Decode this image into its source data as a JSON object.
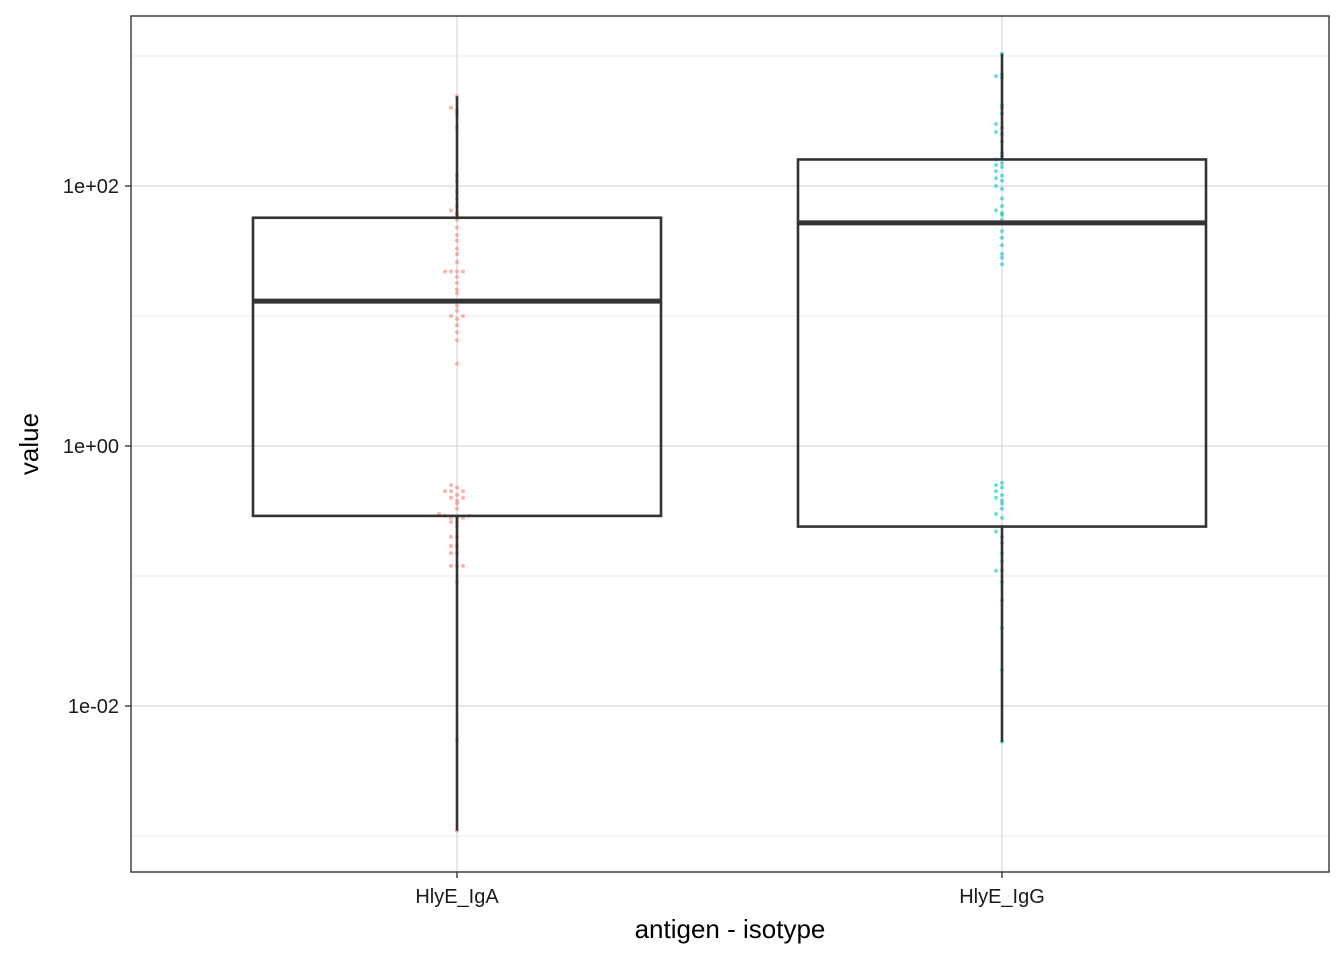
{
  "chart_data": {
    "type": "box",
    "xlabel": "antigen - isotype",
    "ylabel": "value",
    "y_scale": "log10",
    "ylim": [
      0.0004,
      1400
    ],
    "y_ticks": [
      {
        "value": 100,
        "label": "1e+02"
      },
      {
        "value": 1,
        "label": "1e+00"
      },
      {
        "value": 0.01,
        "label": "1e-02"
      }
    ],
    "y_minor_grid": [
      1000,
      10,
      0.1,
      0.001
    ],
    "categories": [
      "HlyE_IgA",
      "HlyE_IgG"
    ],
    "colors": {
      "HlyE_IgA": "#F8766D",
      "HlyE_IgG": "#00BFC4",
      "box": "#333333",
      "grid": "#d9d9d9"
    },
    "boxes": [
      {
        "category": "HlyE_IgA",
        "whisker_low": 0.0011,
        "q1": 0.29,
        "median": 13,
        "q3": 57,
        "whisker_high": 490
      },
      {
        "category": "HlyE_IgG",
        "whisker_low": 0.0053,
        "q1": 0.24,
        "median": 52,
        "q3": 160,
        "whisker_high": 1040
      }
    ],
    "points": [
      {
        "category": "HlyE_IgA",
        "values": [
          0.0011,
          0.0055,
          0.09,
          0.12,
          0.12,
          0.12,
          0.15,
          0.15,
          0.17,
          0.17,
          0.2,
          0.2,
          0.24,
          0.26,
          0.26,
          0.28,
          0.28,
          0.28,
          0.29,
          0.29,
          0.3,
          0.33,
          0.36,
          0.38,
          0.4,
          0.4,
          0.42,
          0.45,
          0.45,
          0.45,
          0.48,
          0.5,
          4.3,
          6.5,
          7.5,
          8.5,
          9.5,
          10,
          10,
          11,
          12,
          15,
          16,
          18,
          20,
          22,
          22,
          22,
          22,
          26,
          30,
          33,
          38,
          42,
          48,
          55,
          60,
          62,
          65,
          70,
          80,
          90,
          110,
          120,
          280,
          360,
          380,
          400,
          490
        ]
      },
      {
        "category": "HlyE_IgG",
        "values": [
          0.0053,
          0.019,
          0.04,
          0.065,
          0.09,
          0.11,
          0.11,
          0.13,
          0.15,
          0.18,
          0.2,
          0.22,
          0.24,
          0.28,
          0.3,
          0.33,
          0.36,
          0.38,
          0.4,
          0.42,
          0.45,
          0.48,
          0.5,
          0.52,
          25,
          28,
          30,
          35,
          40,
          45,
          55,
          60,
          62,
          65,
          70,
          80,
          95,
          100,
          110,
          115,
          120,
          130,
          140,
          145,
          150,
          160,
          170,
          180,
          220,
          250,
          260,
          280,
          300,
          360,
          400,
          420,
          680,
          700,
          720,
          1040
        ]
      }
    ]
  }
}
